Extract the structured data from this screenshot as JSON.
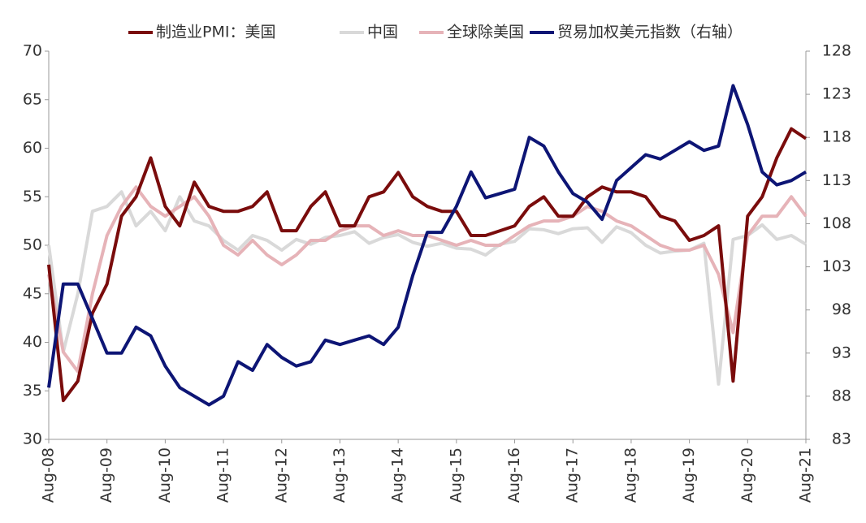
{
  "chart_data": {
    "type": "line",
    "categories": [
      "Aug-08",
      null,
      null,
      null,
      "Aug-09",
      null,
      null,
      null,
      "Aug-10",
      null,
      null,
      null,
      "Aug-11",
      null,
      null,
      null,
      "Aug-12",
      null,
      null,
      null,
      "Aug-13",
      null,
      null,
      null,
      "Aug-14",
      null,
      null,
      null,
      "Aug-15",
      null,
      null,
      null,
      "Aug-16",
      null,
      null,
      null,
      "Aug-17",
      null,
      null,
      null,
      "Aug-18",
      null,
      null,
      null,
      "Aug-19",
      null,
      null,
      null,
      "Aug-20",
      null,
      null,
      null,
      "Aug-21"
    ],
    "series": [
      {
        "name": "制造业PMI：美国",
        "color": "#7a0c0c",
        "values": [
          48,
          34,
          36,
          43,
          46,
          53,
          55,
          59,
          54,
          52,
          56.5,
          54,
          53.5,
          53.5,
          54,
          55.5,
          51.5,
          51.5,
          54,
          55.5,
          52,
          52,
          55,
          55.5,
          57.5,
          55,
          54,
          53.5,
          53.5,
          51,
          51,
          51.5,
          52,
          54,
          55,
          53,
          53,
          55,
          56,
          55.5,
          55.5,
          55,
          53,
          52.5,
          50.5,
          51,
          52,
          36,
          53,
          55,
          59,
          62,
          61
        ]
      },
      {
        "name": "中国",
        "color": "#d9d9d9",
        "values": [
          50,
          39,
          45,
          53.5,
          54,
          55.5,
          52,
          53.5,
          51.5,
          55,
          52.5,
          52,
          50.5,
          49.5,
          51,
          50.5,
          49.5,
          50.6,
          50.1,
          50.8,
          51,
          51.4,
          50.2,
          50.8,
          51.1,
          50.3,
          49.9,
          50.2,
          49.7,
          49.6,
          49,
          50.1,
          50.4,
          51.7,
          51.6,
          51.2,
          51.7,
          51.8,
          50.3,
          51.9,
          51.3,
          50,
          49.2,
          49.4,
          49.5,
          50.2,
          35.7,
          50.6,
          51,
          52.1,
          50.6,
          51,
          50.1
        ]
      },
      {
        "name": "全球除美国",
        "color": "#e6b3b8",
        "values": [
          47,
          39,
          37,
          45,
          51,
          54,
          56,
          54,
          53,
          54,
          55,
          53,
          50,
          49,
          50.5,
          49,
          48,
          49,
          50.5,
          50.5,
          51.5,
          52,
          52,
          51,
          51.5,
          51,
          51,
          50.5,
          50,
          50.5,
          50,
          50,
          51,
          52,
          52.5,
          52.5,
          53,
          54,
          53.5,
          52.5,
          52,
          51,
          50,
          49.5,
          49.5,
          50,
          47,
          41,
          51,
          53,
          53,
          55,
          53
        ]
      },
      {
        "name": "贸易加权美元指数（右轴）",
        "color": "#0d1575",
        "axis": "y2",
        "values": [
          89,
          101,
          101,
          97,
          93,
          93,
          96,
          95,
          91.5,
          89,
          88,
          87,
          88,
          92,
          91,
          94,
          92.5,
          91.5,
          92,
          94.5,
          94,
          94.5,
          95,
          94,
          96,
          102,
          107,
          107,
          110,
          114,
          111,
          111.5,
          112,
          118,
          117,
          114,
          111.5,
          110.5,
          108.5,
          113,
          114.5,
          116,
          115.5,
          116.5,
          117.5,
          116.5,
          117,
          124,
          119.5,
          114,
          112.5,
          113,
          114
        ]
      }
    ],
    "ylim": [
      30,
      70
    ],
    "yticks": [
      30,
      35,
      40,
      45,
      50,
      55,
      60,
      65,
      70
    ],
    "y2lim": [
      83,
      128
    ],
    "y2ticks": [
      83,
      88,
      93,
      98,
      103,
      108,
      113,
      118,
      123,
      128
    ]
  }
}
